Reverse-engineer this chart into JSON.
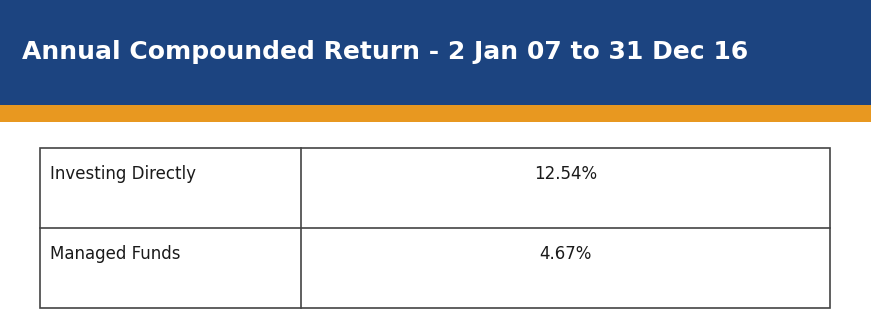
{
  "title": "Annual Compounded Return - 2 Jan 07 to 31 Dec 16",
  "title_bg_color": "#1c4480",
  "title_text_color": "#ffffff",
  "orange_bar_color": "#e89820",
  "table_rows": [
    [
      "Investing Directly",
      "12.54%"
    ],
    [
      "Managed Funds",
      "4.67%"
    ]
  ],
  "table_text_color": "#1a1a1a",
  "bg_color": "#ffffff",
  "title_fontsize": 18,
  "table_fontsize": 12,
  "fig_width": 8.71,
  "fig_height": 3.22,
  "dpi": 100
}
